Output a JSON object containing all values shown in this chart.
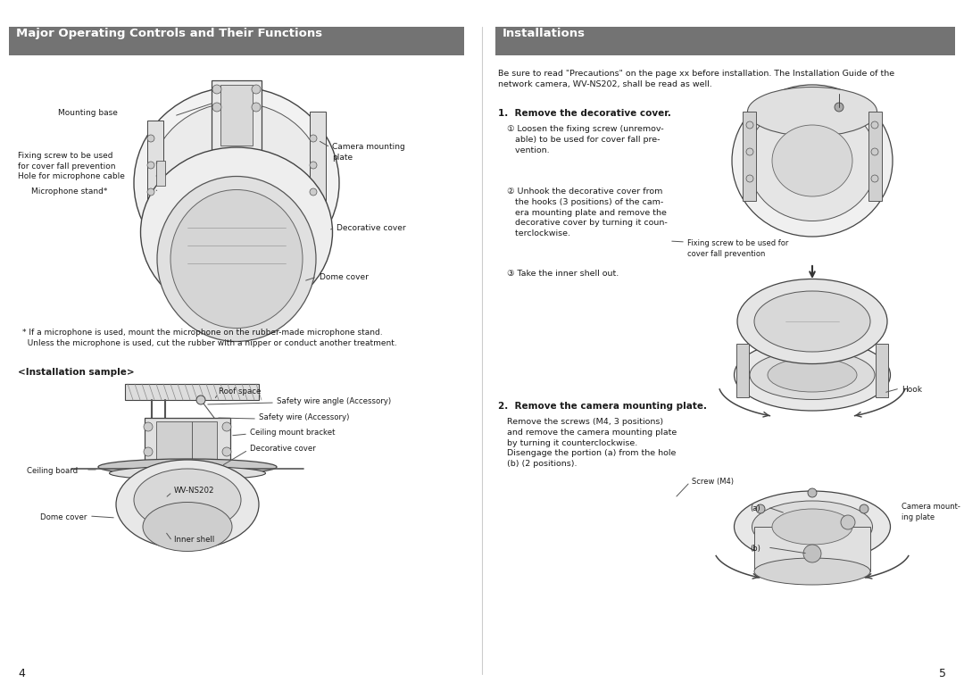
{
  "bg_color": "#ffffff",
  "header_color": "#737373",
  "header_text_color": "#ffffff",
  "left_title": "Major Operating Controls and Their Functions",
  "right_title": "Installations",
  "text_color": "#1a1a1a",
  "label_color": "#333333",
  "line_color": "#555555",
  "diagram_bg": "#f5f5f5",
  "diagram_edge": "#444444",
  "page_left": "4",
  "page_right": "5",
  "footnote": "* If a microphone is used, mount the microphone on the rubber-made microphone stand.\n  Unless the microphone is used, cut the rubber with a nipper or conduct another treatment.",
  "install_sample_title": "<Installation sample>",
  "right_intro": "Be sure to read \"Precautions\" on the page xx before installation. The Installation Guide of the\nnetwork camera, WV-NS202, shall be read as well.",
  "section1_title": "Remove the decorative cover.",
  "body1a": "① Loosen the fixing screw (unremov-\n   able) to be used for cover fall pre-\n   vention.",
  "body1b": "② Unhook the decorative cover from\n   the hooks (3 positions) of the cam-\n   era mounting plate and remove the\n   decorative cover by turning it coun-\n   terclockwise.",
  "body1c": "③ Take the inner shell out.",
  "section2_title": "Remove the camera mounting plate.",
  "body2": "Remove the screws (M4, 3 positions)\nand remove the camera mounting plate\nby turning it counterclockwise.\nDisengage the portion (a) from the hole\n(b) (2 positions).",
  "img1_label": "Fixing screw to be used for\ncover fall prevention",
  "img2_label": "Hook",
  "img3_labels": [
    "Screw (M4)",
    "(a)",
    "Camera mount-\ning plate",
    "(b)"
  ]
}
